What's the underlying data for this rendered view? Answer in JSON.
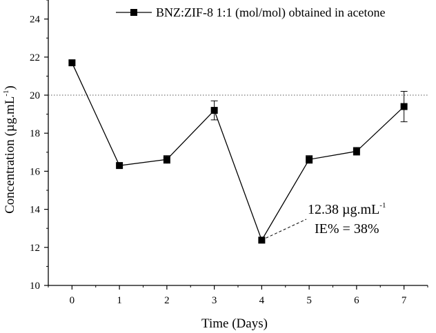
{
  "chart_data": {
    "type": "line",
    "title": "",
    "xlabel": "Time (Days)",
    "ylabel": "Concentration (µg.mL-1)",
    "ylabel_parts": {
      "main": "Concentration (µg.mL",
      "sup": "-1",
      "close": ")"
    },
    "x": [
      0,
      1,
      2,
      3,
      4,
      5,
      6,
      7
    ],
    "xticks": [
      "0",
      "1",
      "2",
      "3",
      "4",
      "5",
      "6",
      "7"
    ],
    "yticks": [
      "10",
      "12",
      "14",
      "16",
      "18",
      "20",
      "22",
      "24"
    ],
    "xlim": [
      -0.5,
      7.5
    ],
    "ylim": [
      10,
      25
    ],
    "series": [
      {
        "name": "BNZ:ZIF-8 1:1 (mol/mol) obtained in acetone",
        "values": [
          21.7,
          16.3,
          16.62,
          19.2,
          12.38,
          16.62,
          17.05,
          19.4
        ],
        "error": [
          0,
          0,
          0.2,
          0.5,
          0,
          0.2,
          0.2,
          0.8
        ],
        "marker": "square",
        "color": "#000000"
      }
    ],
    "reference_line": {
      "y": 20,
      "style": "dotted"
    },
    "annotation": {
      "x": 4,
      "y": 12.38,
      "line1_main": "12.38 µg.mL",
      "line1_sup": "-1",
      "line2": "IE% = 38%"
    },
    "legend": {
      "position": "top-right"
    },
    "grid": false
  }
}
